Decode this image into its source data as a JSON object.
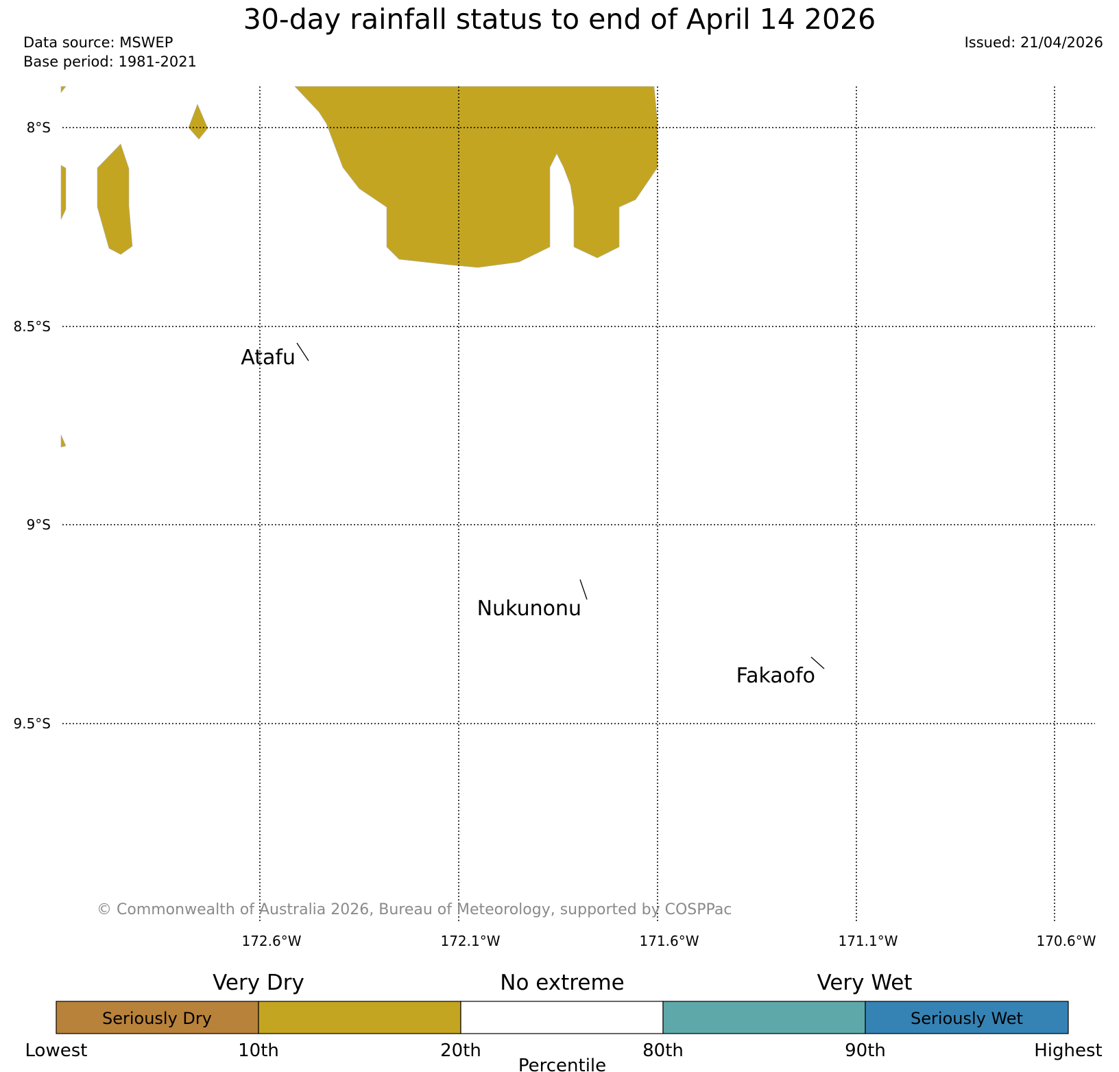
{
  "title": "30-day rainfall status to end of April 14 2026",
  "meta": {
    "source": "Data source: MSWEP",
    "base_period": "Base period: 1981-2021",
    "issued": "Issued: 21/04/2026"
  },
  "map": {
    "lat_labels": [
      "8°S",
      "8.5°S",
      "9°S",
      "9.5°S"
    ],
    "lon_labels": [
      "172.6°W",
      "172.1°W",
      "171.6°W",
      "171.1°W",
      "170.6°W"
    ],
    "places": [
      "Atafu",
      "Nukunonu",
      "Fakaofo"
    ],
    "copyright": "© Commonwealth of Australia 2026, Bureau of Meteorology, supported by COSPPac",
    "region_category": "Very Dry"
  },
  "legend": {
    "headers": [
      "Very Dry",
      "No extreme",
      "Very Wet"
    ],
    "bins": [
      {
        "label": "Seriously Dry",
        "color": "#b8823b"
      },
      {
        "label": "",
        "color": "#c4a521"
      },
      {
        "label": "",
        "color": "#ffffff"
      },
      {
        "label": "",
        "color": "#5ea8aa"
      },
      {
        "label": "Seriously Wet",
        "color": "#3583b5"
      }
    ],
    "ticks": [
      "Lowest",
      "10th",
      "20th",
      "80th",
      "90th",
      "Highest"
    ],
    "axis_title": "Percentile"
  }
}
